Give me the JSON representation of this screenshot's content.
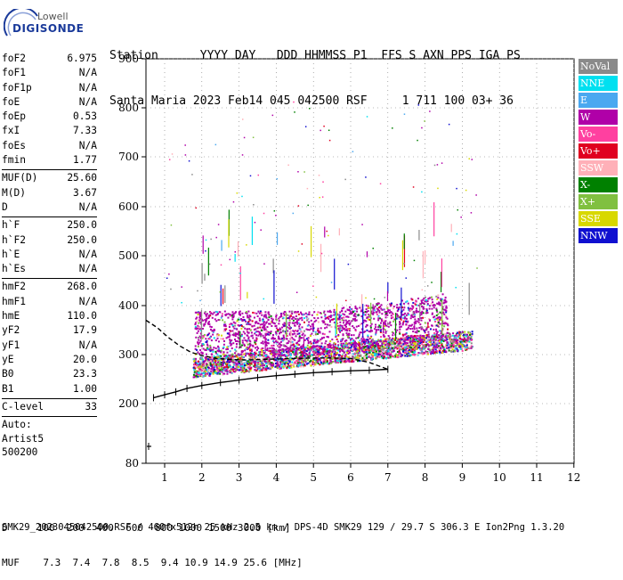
{
  "logo": {
    "line1": "Lowell",
    "line2": "DIGISONDE"
  },
  "header": {
    "line1": "Station      YYYY DAY   DDD HHMMSS P1  FFS S AXN PPS IGA PS",
    "line2": "Santa Maria 2023 Feb14 045 042500 RSF     1 711 100 03+ 36"
  },
  "params": [
    {
      "k": "foF2",
      "v": "6.975"
    },
    {
      "k": "foF1",
      "v": "N/A"
    },
    {
      "k": "foF1p",
      "v": "N/A"
    },
    {
      "k": "foE",
      "v": "N/A"
    },
    {
      "k": "foEp",
      "v": "0.53"
    },
    {
      "k": "fxI",
      "v": "7.33"
    },
    {
      "k": "foEs",
      "v": "N/A"
    },
    {
      "k": "fmin",
      "v": "1.77"
    },
    {
      "sep": true
    },
    {
      "k": "MUF(D)",
      "v": "25.60"
    },
    {
      "k": "M(D)",
      "v": "3.67"
    },
    {
      "k": "D",
      "v": "N/A"
    },
    {
      "sep": true
    },
    {
      "k": "h`F",
      "v": "250.0"
    },
    {
      "k": "h`F2",
      "v": "250.0"
    },
    {
      "k": "h`E",
      "v": "N/A"
    },
    {
      "k": "h`Es",
      "v": "N/A"
    },
    {
      "sep": true
    },
    {
      "k": "hmF2",
      "v": "268.0"
    },
    {
      "k": "hmF1",
      "v": "N/A"
    },
    {
      "k": "hmE",
      "v": "110.0"
    },
    {
      "k": "yF2",
      "v": "17.9"
    },
    {
      "k": "yF1",
      "v": "N/A"
    },
    {
      "k": "yE",
      "v": "20.0"
    },
    {
      "k": "B0",
      "v": "23.3"
    },
    {
      "k": "B1",
      "v": "1.00"
    },
    {
      "sep": true
    },
    {
      "k": "C-level",
      "v": "33"
    },
    {
      "sep": true
    },
    {
      "t": "Auto:"
    },
    {
      "t": "Artist5"
    },
    {
      "t": "500200"
    }
  ],
  "legend": [
    {
      "label": "NoVal",
      "color": "#8a8a8a"
    },
    {
      "label": "NNE",
      "color": "#00e0f0"
    },
    {
      "label": "E",
      "color": "#4aa8f0"
    },
    {
      "label": "W",
      "color": "#b000a8"
    },
    {
      "label": "Vo-",
      "color": "#ff40a0"
    },
    {
      "label": "Vo+",
      "color": "#e00020"
    },
    {
      "label": "SSW",
      "color": "#ffb0b8"
    },
    {
      "label": "X-",
      "color": "#008000"
    },
    {
      "label": "X+",
      "color": "#80c040"
    },
    {
      "label": "SSE",
      "color": "#d8d800"
    },
    {
      "label": "NNW",
      "color": "#1010d0"
    }
  ],
  "chart_data": {
    "type": "scatter",
    "xlim": [
      0.5,
      12
    ],
    "ylim": [
      80,
      900
    ],
    "x_ticks": [
      "1",
      "2",
      "3",
      "4",
      "5",
      "6",
      "7",
      "8",
      "9",
      "10",
      "11",
      "12"
    ],
    "y_ticks": [
      "80",
      "200",
      "300",
      "400",
      "500",
      "600",
      "700",
      "800",
      "900"
    ],
    "y_tick_values": [
      80,
      200,
      300,
      400,
      500,
      600,
      700,
      800,
      900
    ],
    "grid": "dotted",
    "series": [
      {
        "name": "virtual-height trace",
        "x": [
          0.7,
          1.0,
          1.3,
          1.6,
          2.0,
          2.5,
          3.0,
          3.5,
          4.0,
          4.5,
          5.0,
          5.5,
          6.0,
          6.5,
          7.0
        ],
        "y": [
          212,
          218,
          224,
          231,
          237,
          243,
          248,
          253,
          257,
          260,
          263,
          265,
          267,
          268,
          270
        ]
      },
      {
        "name": "profile",
        "x": [
          0.5,
          0.8,
          1.1,
          1.4,
          1.7,
          2.0,
          2.4,
          2.8,
          3.2,
          3.6,
          4.0,
          4.5,
          5.0,
          5.5,
          6.0,
          6.5,
          7.0
        ],
        "y": [
          370,
          355,
          335,
          318,
          305,
          298,
          292,
          290,
          289,
          290,
          291,
          292,
          293,
          293,
          292,
          284,
          270
        ]
      }
    ]
  },
  "bottom": {
    "d_line": "D     100  200  400  600  800 1000 1500 3000 [km]",
    "muf_line": "MUF    7.3  7.4  7.8  8.5  9.4 10.9 14.9 25.6 [MHz]"
  },
  "footer": "SMK29_2023045042500.RSF / 460fx512h 25 kHz 2.5 km / DPS-4D SMK29 129 / 29.7 S 306.3 E Ion2Png 1.3.20"
}
